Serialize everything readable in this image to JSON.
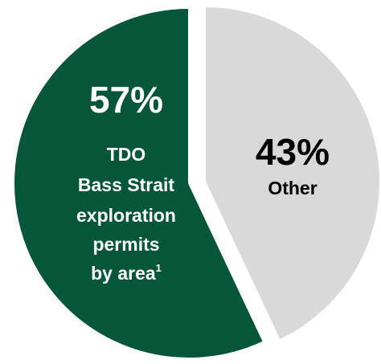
{
  "chart_data": {
    "type": "pie",
    "title": "",
    "slices": [
      {
        "percent": "57%",
        "value": 57,
        "label_lines": [
          "TDO",
          "Bass Strait",
          "exploration",
          "permits",
          "by area"
        ],
        "footnote_marker": "1",
        "color": "#06563a",
        "text_color": "#ffffff"
      },
      {
        "percent": "43%",
        "value": 43,
        "label_lines": [
          "Other"
        ],
        "color": "#d9d9d9",
        "text_color": "#000000"
      }
    ]
  }
}
